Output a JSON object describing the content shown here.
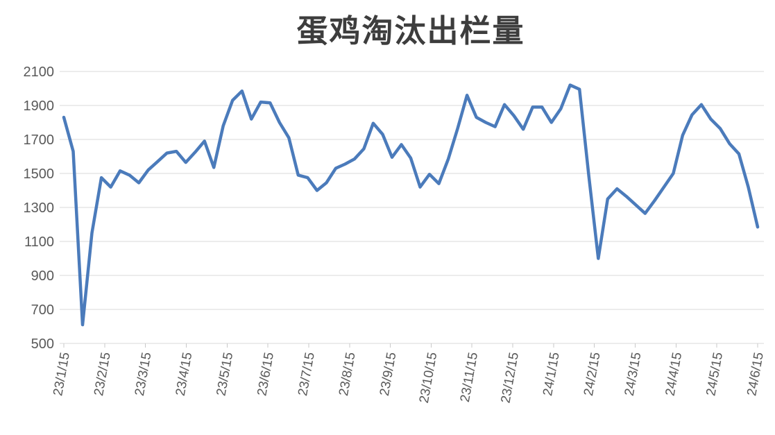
{
  "title": "蛋鸡淘汰出栏量",
  "chart_data": {
    "type": "line",
    "title": "蛋鸡淘汰出栏量",
    "x_labels": [
      "23/1/15",
      "23/2/15",
      "23/3/15",
      "23/4/15",
      "23/5/15",
      "23/6/15",
      "23/7/15",
      "23/8/15",
      "23/9/15",
      "23/10/15",
      "23/11/15",
      "23/12/15",
      "24/1/15",
      "24/2/15",
      "24/3/15",
      "24/4/15",
      "24/5/15",
      "24/6/15"
    ],
    "yticks": [
      500,
      700,
      900,
      1100,
      1300,
      1500,
      1700,
      1900,
      2100
    ],
    "ylim": [
      500,
      2100
    ],
    "grid": true,
    "legend": "none",
    "values": [
      1830,
      1630,
      610,
      1150,
      1475,
      1420,
      1515,
      1490,
      1445,
      1520,
      1570,
      1620,
      1630,
      1565,
      1625,
      1690,
      1535,
      1780,
      1930,
      1985,
      1820,
      1920,
      1915,
      1800,
      1710,
      1490,
      1475,
      1400,
      1445,
      1530,
      1555,
      1585,
      1645,
      1795,
      1730,
      1595,
      1670,
      1590,
      1420,
      1495,
      1440,
      1585,
      1765,
      1960,
      1830,
      1800,
      1775,
      1905,
      1840,
      1760,
      1890,
      1890,
      1800,
      1880,
      2020,
      1995,
      1480,
      1000,
      1350,
      1410,
      1365,
      1315,
      1265,
      1340,
      1420,
      1500,
      1725,
      1845,
      1905,
      1820,
      1765,
      1675,
      1615,
      1420,
      1185
    ],
    "line_color": "#4b7bbb",
    "grid_color": "#d9d9d9",
    "tick_color": "#c9c9c9",
    "axis_label_color": "#595959",
    "title_color": "#3d3d3d"
  }
}
